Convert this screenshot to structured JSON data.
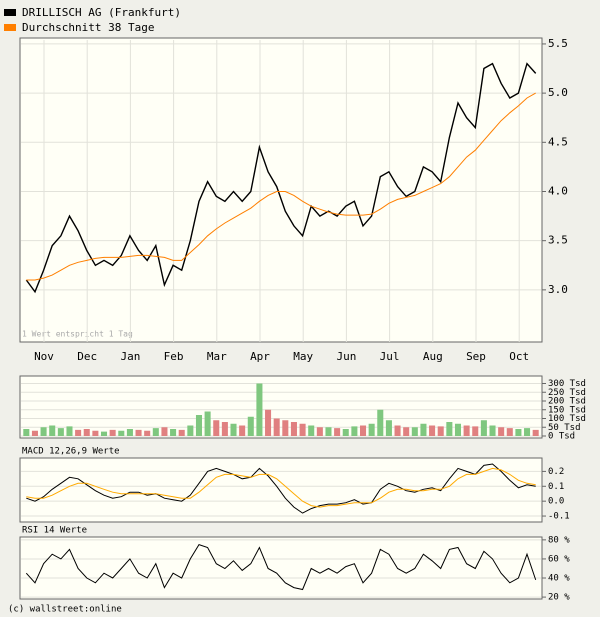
{
  "chart_data": [
    {
      "type": "line",
      "note": "1 Wert entspricht 1 Tag",
      "month_labels": [
        "Nov",
        "Dec",
        "Jan",
        "Feb",
        "Mar",
        "Apr",
        "May",
        "Jun",
        "Jul",
        "Aug",
        "Sep",
        "Oct"
      ],
      "ylim": [
        2.47,
        5.54
      ],
      "yticks": [
        {
          "value": 3.0,
          "label": "3.0"
        },
        3.5,
        {
          "value": 4.0,
          "label": "4.0"
        },
        4.5,
        {
          "value": 5.0,
          "label": "5.0"
        },
        5.5
      ],
      "grid": true,
      "series": [
        {
          "name": "DRILLISCH AG (Frankfurt)",
          "color": "#000000",
          "values": [
            3.1,
            2.98,
            3.2,
            3.45,
            3.55,
            3.75,
            3.6,
            3.4,
            3.25,
            3.3,
            3.25,
            3.35,
            3.55,
            3.4,
            3.3,
            3.45,
            3.05,
            3.25,
            3.2,
            3.5,
            3.9,
            4.1,
            3.95,
            3.9,
            4.0,
            3.9,
            4.0,
            4.45,
            4.2,
            4.05,
            3.8,
            3.65,
            3.55,
            3.85,
            3.75,
            3.8,
            3.75,
            3.85,
            3.9,
            3.65,
            3.75,
            4.15,
            4.2,
            4.05,
            3.95,
            4.0,
            4.25,
            4.2,
            4.1,
            4.55,
            4.9,
            4.75,
            4.65,
            5.25,
            5.3,
            5.1,
            4.95,
            5.0,
            5.3,
            5.2
          ]
        },
        {
          "name": "Durchschnitt 38 Tage",
          "color": "#ff7f00",
          "values": [
            3.1,
            3.1,
            3.12,
            3.15,
            3.2,
            3.25,
            3.28,
            3.3,
            3.32,
            3.33,
            3.33,
            3.33,
            3.34,
            3.35,
            3.35,
            3.34,
            3.33,
            3.3,
            3.3,
            3.38,
            3.46,
            3.55,
            3.62,
            3.68,
            3.73,
            3.78,
            3.83,
            3.9,
            3.96,
            4.0,
            4.0,
            3.96,
            3.9,
            3.85,
            3.82,
            3.79,
            3.77,
            3.76,
            3.76,
            3.76,
            3.77,
            3.82,
            3.88,
            3.92,
            3.94,
            3.96,
            4.0,
            4.04,
            4.08,
            4.15,
            4.25,
            4.35,
            4.42,
            4.52,
            4.62,
            4.72,
            4.8,
            4.87,
            4.95,
            5.0
          ]
        }
      ]
    },
    {
      "type": "bar",
      "up_color": "#7fc77f",
      "down_color": "#e08080",
      "ylim": [
        0,
        320
      ],
      "yticks": [
        {
          "value": 300,
          "label": "300 Tsd"
        },
        {
          "value": 250,
          "label": "250 Tsd"
        },
        {
          "value": 200,
          "label": "200 Tsd"
        },
        {
          "value": 150,
          "label": "150 Tsd"
        },
        {
          "value": 100,
          "label": "100 Tsd"
        },
        {
          "value": 50,
          "label": "50 Tsd"
        },
        {
          "value": 0,
          "label": "0 Tsd"
        }
      ],
      "values": [
        40,
        30,
        50,
        60,
        45,
        55,
        35,
        40,
        30,
        25,
        35,
        30,
        40,
        35,
        30,
        45,
        50,
        40,
        35,
        60,
        120,
        140,
        90,
        80,
        70,
        60,
        110,
        300,
        150,
        100,
        90,
        80,
        70,
        60,
        50,
        50,
        45,
        40,
        55,
        60,
        70,
        150,
        90,
        60,
        50,
        50,
        70,
        60,
        55,
        80,
        70,
        60,
        55,
        90,
        60,
        50,
        45,
        40,
        45,
        35
      ]
    },
    {
      "type": "line",
      "title": "MACD 12,26,9 Werte",
      "ylim": [
        -0.14,
        0.29
      ],
      "yticks": [
        0.2,
        0.1,
        {
          "value": 0.0,
          "label": "0.0"
        },
        -0.1
      ],
      "series": [
        {
          "color": "#000000",
          "values": [
            0.02,
            0.0,
            0.03,
            0.08,
            0.12,
            0.16,
            0.15,
            0.11,
            0.07,
            0.04,
            0.02,
            0.03,
            0.06,
            0.06,
            0.04,
            0.05,
            0.02,
            0.01,
            0.0,
            0.04,
            0.12,
            0.2,
            0.22,
            0.2,
            0.18,
            0.15,
            0.16,
            0.22,
            0.17,
            0.1,
            0.02,
            -0.04,
            -0.08,
            -0.05,
            -0.03,
            -0.02,
            -0.02,
            -0.01,
            0.01,
            -0.02,
            -0.01,
            0.08,
            0.12,
            0.1,
            0.07,
            0.06,
            0.08,
            0.09,
            0.07,
            0.15,
            0.22,
            0.2,
            0.18,
            0.24,
            0.25,
            0.2,
            0.14,
            0.09,
            0.11,
            0.1
          ]
        },
        {
          "color": "#ffaa00",
          "values": [
            0.03,
            0.02,
            0.02,
            0.04,
            0.07,
            0.1,
            0.12,
            0.12,
            0.1,
            0.08,
            0.06,
            0.05,
            0.05,
            0.05,
            0.05,
            0.05,
            0.04,
            0.03,
            0.02,
            0.02,
            0.06,
            0.11,
            0.16,
            0.18,
            0.18,
            0.17,
            0.16,
            0.18,
            0.18,
            0.15,
            0.1,
            0.05,
            0.0,
            -0.03,
            -0.04,
            -0.03,
            -0.03,
            -0.02,
            -0.01,
            -0.01,
            -0.01,
            0.02,
            0.06,
            0.08,
            0.08,
            0.07,
            0.07,
            0.08,
            0.08,
            0.1,
            0.15,
            0.18,
            0.18,
            0.2,
            0.22,
            0.21,
            0.18,
            0.14,
            0.12,
            0.11
          ]
        }
      ]
    },
    {
      "type": "line",
      "title": "RSI 14 Werte",
      "ylim": [
        18,
        83
      ],
      "yticks": [
        {
          "value": 80,
          "label": "80 %"
        },
        {
          "value": 60,
          "label": "60 %"
        },
        {
          "value": 40,
          "label": "40 %"
        },
        {
          "value": 20,
          "label": "20 %"
        }
      ],
      "series": [
        {
          "color": "#000000",
          "values": [
            45,
            35,
            55,
            65,
            60,
            70,
            50,
            40,
            35,
            45,
            40,
            50,
            60,
            45,
            40,
            55,
            30,
            45,
            40,
            60,
            75,
            72,
            55,
            50,
            58,
            48,
            55,
            72,
            50,
            45,
            35,
            30,
            28,
            50,
            45,
            50,
            45,
            52,
            55,
            35,
            45,
            70,
            65,
            50,
            45,
            50,
            65,
            58,
            50,
            70,
            72,
            55,
            50,
            68,
            60,
            45,
            35,
            40,
            65,
            38
          ]
        }
      ]
    }
  ],
  "footer": "(c) wallstreet:online"
}
